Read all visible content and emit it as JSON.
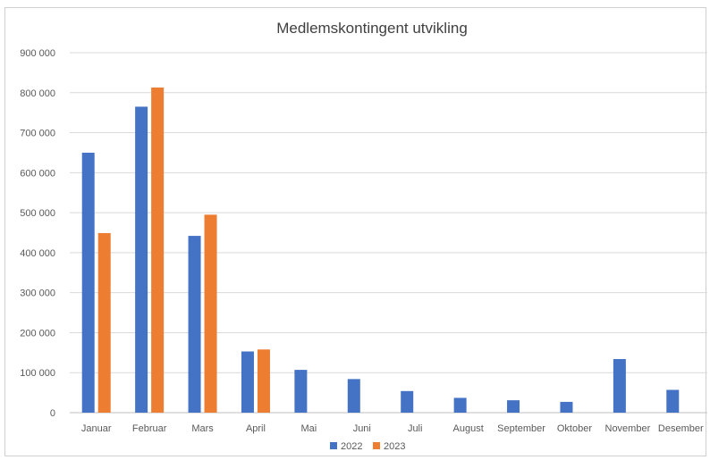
{
  "chart_data": {
    "type": "bar",
    "title": "Medlemskontingent utvikling",
    "xlabel": "",
    "ylabel": "",
    "categories": [
      "Januar",
      "Februar",
      "Mars",
      "April",
      "Mai",
      "Juni",
      "Juli",
      "August",
      "September",
      "Oktober",
      "November",
      "Desember"
    ],
    "series": [
      {
        "name": "2022",
        "color": "#4472c4",
        "values": [
          650000,
          765000,
          442000,
          153000,
          107000,
          84000,
          54000,
          37000,
          31000,
          27000,
          134000,
          57000
        ]
      },
      {
        "name": "2023",
        "color": "#ed7d31",
        "values": [
          449000,
          813000,
          495000,
          158000,
          null,
          null,
          null,
          null,
          null,
          null,
          null,
          null
        ]
      }
    ],
    "ylim": [
      0,
      900000
    ],
    "yticks": [
      0,
      100000,
      200000,
      300000,
      400000,
      500000,
      600000,
      700000,
      800000,
      900000
    ],
    "ytick_labels": [
      "0",
      "100 000",
      "200 000",
      "300 000",
      "400 000",
      "500 000",
      "600 000",
      "700 000",
      "800 000",
      "900 000"
    ],
    "grid": true,
    "legend_position": "bottom"
  }
}
